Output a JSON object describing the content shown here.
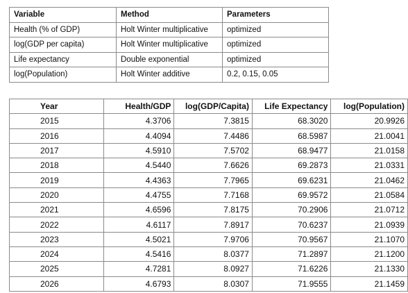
{
  "methods_table": {
    "headers": [
      "Variable",
      "Method",
      "Parameters"
    ],
    "rows": [
      [
        "Health (% of GDP)",
        "Holt Winter multiplicative",
        "optimized"
      ],
      [
        "log(GDP per capita)",
        "Holt Winter multiplicative",
        "optimized"
      ],
      [
        "Life expectancy",
        "Double exponential",
        "optimized"
      ],
      [
        "log(Population)",
        "Holt Winter additive",
        "0.2, 0.15, 0.05"
      ]
    ]
  },
  "forecast_table": {
    "headers": [
      "Year",
      "Health/GDP",
      "log(GDP/Capita)",
      "Life Expectancy",
      "log(Population)"
    ],
    "rows": [
      [
        "2015",
        "4.3706",
        "7.3815",
        "68.3020",
        "20.9926"
      ],
      [
        "2016",
        "4.4094",
        "7.4486",
        "68.5987",
        "21.0041"
      ],
      [
        "2017",
        "4.5910",
        "7.5702",
        "68.9477",
        "21.0158"
      ],
      [
        "2018",
        "4.5440",
        "7.6626",
        "69.2873",
        "21.0331"
      ],
      [
        "2019",
        "4.4363",
        "7.7965",
        "69.6231",
        "21.0462"
      ],
      [
        "2020",
        "4.4755",
        "7.7168",
        "69.9572",
        "21.0584"
      ],
      [
        "2021",
        "4.6596",
        "7.8175",
        "70.2906",
        "21.0712"
      ],
      [
        "2022",
        "4.6117",
        "7.8917",
        "70.6237",
        "21.0939"
      ],
      [
        "2023",
        "4.5021",
        "7.9706",
        "70.9567",
        "21.1070"
      ],
      [
        "2024",
        "4.5416",
        "8.0377",
        "71.2897",
        "21.1200"
      ],
      [
        "2025",
        "4.7281",
        "8.0927",
        "71.6226",
        "21.1330"
      ],
      [
        "2026",
        "4.6793",
        "8.0307",
        "71.9555",
        "21.1459"
      ]
    ]
  },
  "colors": {
    "border": "#8a8a8a",
    "text": "#111111",
    "background": "#ffffff"
  }
}
